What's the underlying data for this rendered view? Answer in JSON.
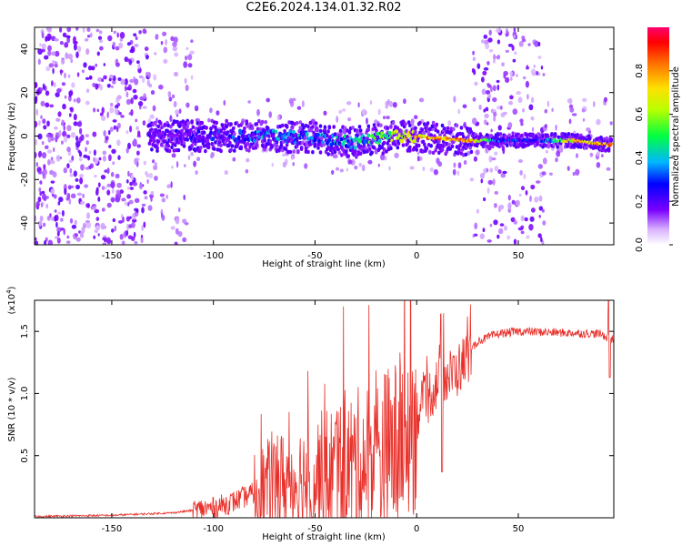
{
  "title": "C2E6.2024.134.01.32.R02",
  "chart_data": [
    {
      "type": "heatmap",
      "xlabel": "Height of straight line (km)",
      "ylabel": "Frequency (Hz)",
      "xlim": [
        -188,
        97
      ],
      "ylim": [
        -50,
        50
      ],
      "x_ticks": [
        "-150",
        "-100",
        "-50",
        "0",
        "50"
      ],
      "x_tick_values": [
        -150,
        -100,
        -50,
        0,
        50
      ],
      "y_ticks": [
        "-40",
        "-20",
        "0",
        "20",
        "40"
      ],
      "y_tick_values": [
        -40,
        -20,
        0,
        20,
        40
      ],
      "colorbar": {
        "label": "Normalized spectral amplitude",
        "range": [
          0,
          1
        ],
        "ticks": [
          "0.0",
          "0.2",
          "0.4",
          "0.6",
          "0.8"
        ],
        "tick_values": [
          0.0,
          0.2,
          0.4,
          0.6,
          0.8
        ]
      },
      "signal_track": [
        {
          "x": -130,
          "freq": 0,
          "amp": 0.25
        },
        {
          "x": -110,
          "freq": 0,
          "amp": 0.3
        },
        {
          "x": -90,
          "freq": 0,
          "amp": 0.4
        },
        {
          "x": -70,
          "freq": 0,
          "amp": 0.45
        },
        {
          "x": -50,
          "freq": -1,
          "amp": 0.45
        },
        {
          "x": -30,
          "freq": -3,
          "amp": 0.5
        },
        {
          "x": -10,
          "freq": 0,
          "amp": 0.7
        },
        {
          "x": 0,
          "freq": 0,
          "amp": 0.85
        },
        {
          "x": 10,
          "freq": -1,
          "amp": 0.9
        },
        {
          "x": 25,
          "freq": -2,
          "amp": 0.9
        },
        {
          "x": 40,
          "freq": -2,
          "amp": 0.4
        },
        {
          "x": 60,
          "freq": -2,
          "amp": 0.35
        },
        {
          "x": 75,
          "freq": -2,
          "amp": 0.8
        },
        {
          "x": 95,
          "freq": -4,
          "amp": 0.95
        }
      ]
    },
    {
      "type": "line",
      "xlabel": "Height of straight line (km)",
      "ylabel": "SNR (10 * v/v)",
      "y_multiplier": "(x10",
      "y_multiplier_exp": "4",
      "multiplier_close": ")",
      "xlim": [
        -188,
        97
      ],
      "ylim": [
        0,
        17500
      ],
      "x_ticks": [
        "-150",
        "-100",
        "-50",
        "0",
        "50"
      ],
      "x_tick_values": [
        -150,
        -100,
        -50,
        0,
        50
      ],
      "y_ticks": [
        "0.5",
        "1.0",
        "1.5"
      ],
      "y_tick_values": [
        5000,
        10000,
        15000
      ],
      "color": "#e8302a",
      "trend": {
        "x": [
          -188,
          -150,
          -120,
          -100,
          -90,
          -80,
          -70,
          -60,
          -50,
          -40,
          -30,
          -20,
          -10,
          0,
          10,
          20,
          25,
          30,
          40,
          50,
          60,
          70,
          80,
          90,
          97
        ],
        "y": [
          100,
          200,
          400,
          800,
          1300,
          2000,
          2700,
          3000,
          3200,
          3700,
          4200,
          4800,
          5600,
          8300,
          10800,
          11800,
          13000,
          14200,
          14800,
          15000,
          14950,
          14900,
          14850,
          14800,
          14300
        ]
      }
    }
  ]
}
